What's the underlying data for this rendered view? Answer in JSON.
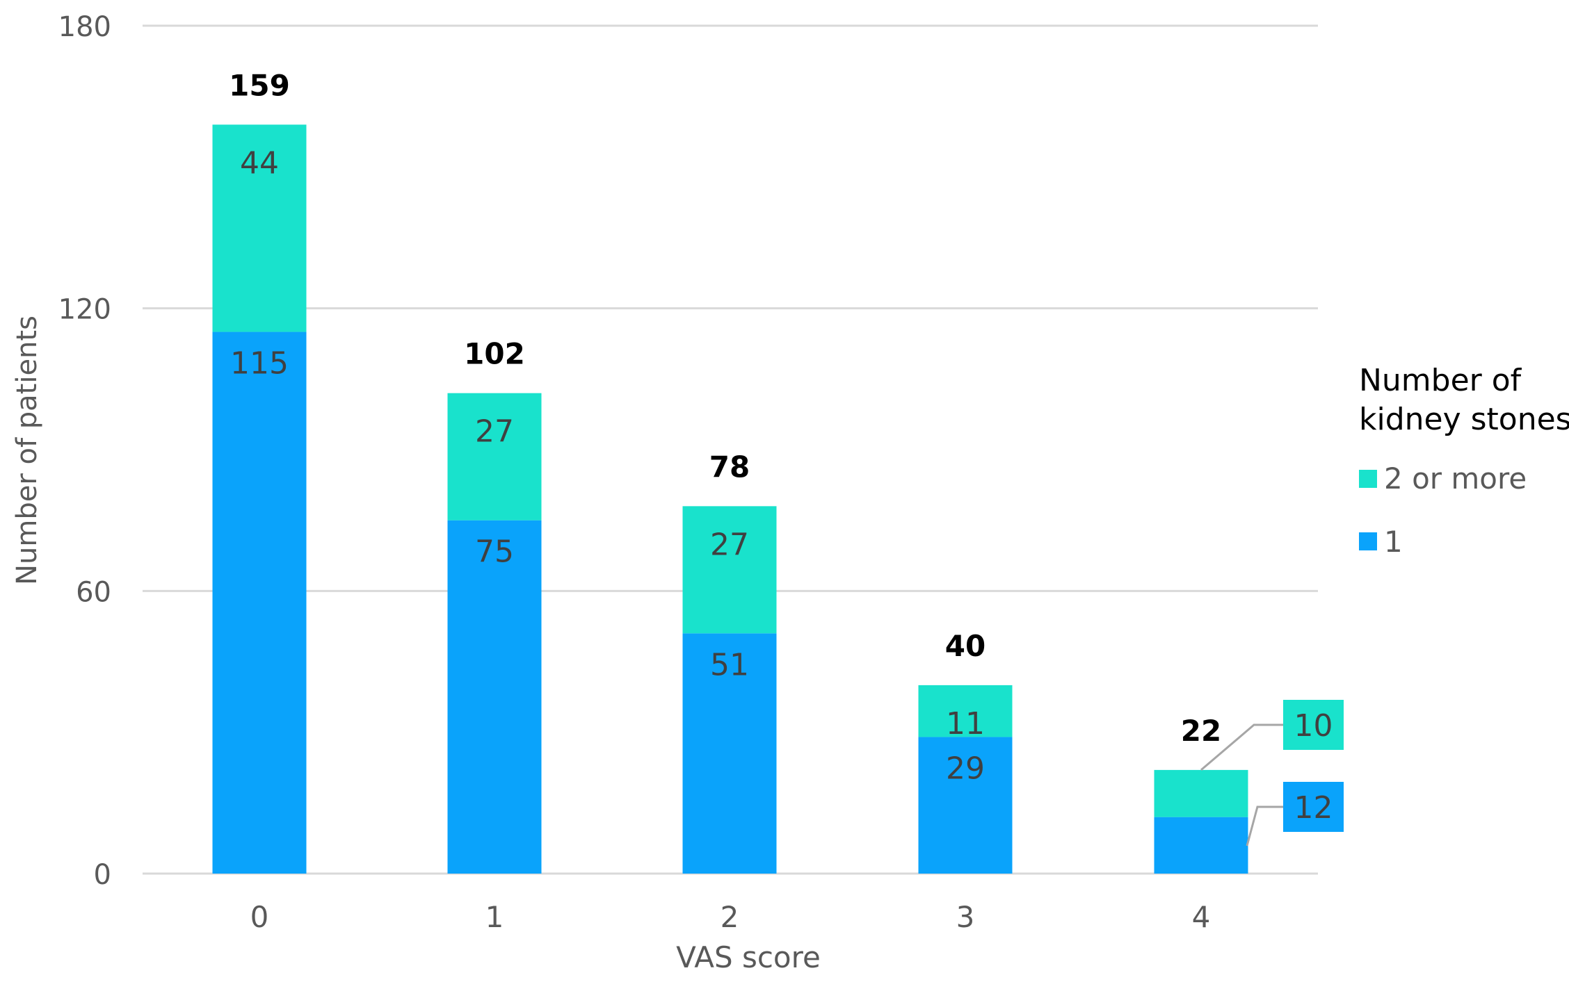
{
  "chart_data": {
    "type": "bar",
    "stacked": true,
    "categories": [
      "0",
      "1",
      "2",
      "3",
      "4"
    ],
    "series": [
      {
        "name": "1",
        "values": [
          115,
          75,
          51,
          29,
          12
        ],
        "color": "#0aa3fb"
      },
      {
        "name": "2 or more",
        "values": [
          44,
          27,
          27,
          11,
          10
        ],
        "color": "#19e2cc"
      }
    ],
    "totals": [
      159,
      102,
      78,
      40,
      22
    ],
    "xlabel": "VAS score",
    "ylabel": "Number of patients",
    "ylim": [
      0,
      180
    ],
    "yticks": [
      0,
      60,
      120,
      180
    ],
    "grid": true,
    "legend": {
      "title_lines": [
        "Number of",
        "kidney stones"
      ],
      "placement": "right",
      "entries": [
        "2 or more",
        "1"
      ]
    },
    "colors": {
      "grid": "#d9d9d9",
      "axis_text": "#595959",
      "segment_label": "#404040",
      "total_label": "#000000",
      "callout_line": "#a6a6a6"
    }
  }
}
